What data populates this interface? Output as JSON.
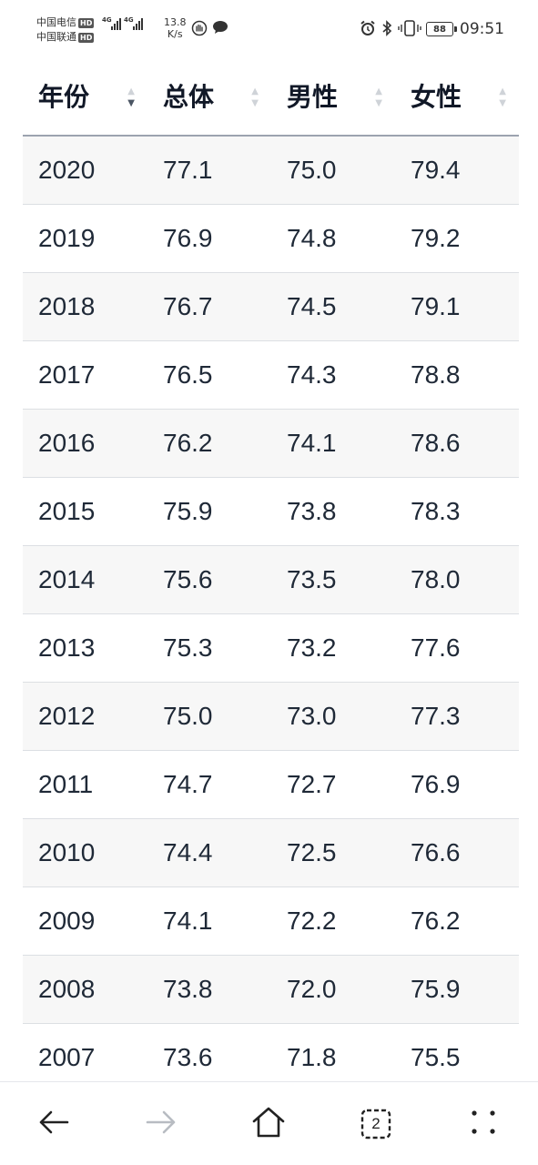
{
  "status_bar": {
    "carrier1": "中国电信",
    "carrier2": "中国联通",
    "hd_badge": "HD",
    "network_tag": "4G",
    "net_speed_value": "13.8",
    "net_speed_unit": "K/s",
    "battery_level": "88",
    "time": "09:51"
  },
  "table": {
    "headers": [
      "年份",
      "总体",
      "男性",
      "女性"
    ],
    "sorted_column": "年份",
    "sort_direction": "descending",
    "rows": [
      [
        "2020",
        "77.1",
        "75.0",
        "79.4"
      ],
      [
        "2019",
        "76.9",
        "74.8",
        "79.2"
      ],
      [
        "2018",
        "76.7",
        "74.5",
        "79.1"
      ],
      [
        "2017",
        "76.5",
        "74.3",
        "78.8"
      ],
      [
        "2016",
        "76.2",
        "74.1",
        "78.6"
      ],
      [
        "2015",
        "75.9",
        "73.8",
        "78.3"
      ],
      [
        "2014",
        "75.6",
        "73.5",
        "78.0"
      ],
      [
        "2013",
        "75.3",
        "73.2",
        "77.6"
      ],
      [
        "2012",
        "75.0",
        "73.0",
        "77.3"
      ],
      [
        "2011",
        "74.7",
        "72.7",
        "76.9"
      ],
      [
        "2010",
        "74.4",
        "72.5",
        "76.6"
      ],
      [
        "2009",
        "74.1",
        "72.2",
        "76.2"
      ],
      [
        "2008",
        "73.8",
        "72.0",
        "75.9"
      ],
      [
        "2007",
        "73.6",
        "71.8",
        "75.5"
      ]
    ]
  },
  "bottom_nav": {
    "tab_count": "2",
    "icons": [
      "back-arrow-icon",
      "forward-arrow-icon",
      "home-icon",
      "tabs-icon",
      "menu-dots-icon"
    ]
  }
}
